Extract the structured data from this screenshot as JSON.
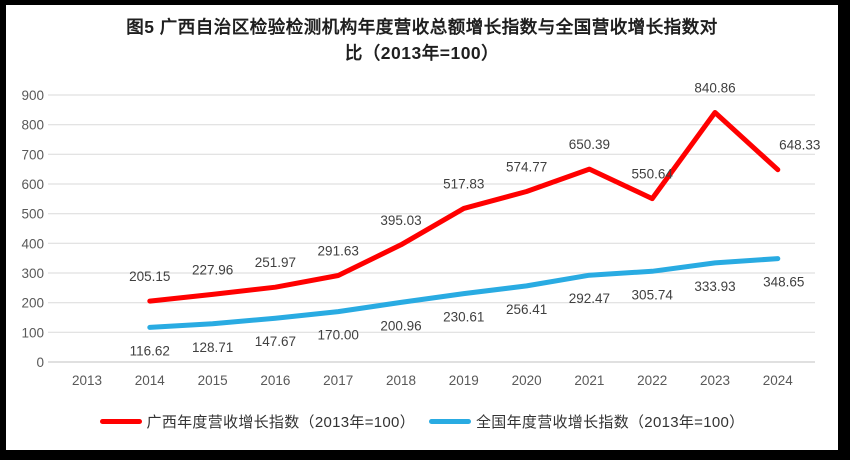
{
  "title": {
    "line1": "图5  广西自治区检验检测机构年度营收总额增长指数与全国营收增长指数对",
    "line2": "比（2013年=100）"
  },
  "chart_data": {
    "type": "line",
    "categories": [
      "2013",
      "2014",
      "2015",
      "2016",
      "2017",
      "2018",
      "2019",
      "2020",
      "2021",
      "2022",
      "2023",
      "2024"
    ],
    "series": [
      {
        "name": "广西年度营收增长指数（2013年=100）",
        "color": "#FF0000",
        "values": [
          null,
          205.15,
          227.96,
          251.97,
          291.63,
          395.03,
          517.83,
          574.77,
          650.39,
          550.64,
          840.86,
          648.33
        ],
        "label_position": "above",
        "label_dx": [
          0,
          0,
          0,
          0,
          0,
          0,
          0,
          0,
          0,
          0,
          0,
          22
        ]
      },
      {
        "name": "全国年度营收增长指数（2013年=100）",
        "color": "#29ABE2",
        "values": [
          null,
          116.62,
          128.71,
          147.67,
          170.0,
          200.96,
          230.61,
          256.41,
          292.47,
          305.74,
          333.93,
          348.65
        ],
        "label_position": "below",
        "label_dx": [
          0,
          0,
          0,
          0,
          0,
          0,
          0,
          0,
          0,
          0,
          0,
          6
        ]
      }
    ],
    "ylim": [
      0,
      900
    ],
    "ytick_step": 100,
    "grid": true,
    "legend_position": "bottom",
    "data_labels": true,
    "label_decimals": 2
  },
  "colors": {
    "grid": "#DADADA",
    "axis": "#C0C0C0",
    "tick_text": "#595959",
    "label_text": "#404040"
  }
}
